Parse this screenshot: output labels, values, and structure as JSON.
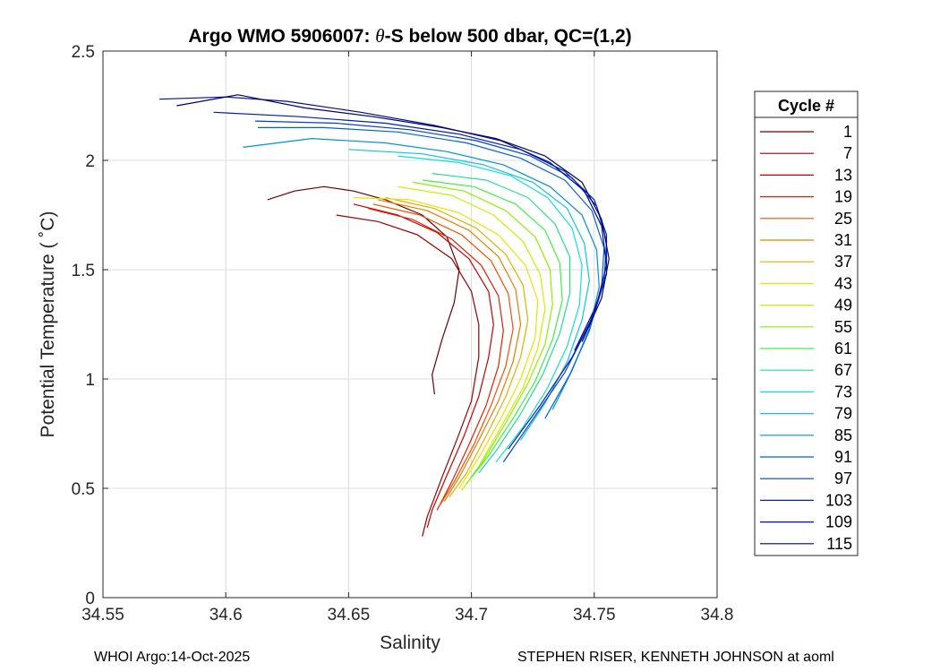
{
  "chart_data": {
    "type": "line",
    "title_prefix": "Argo WMO 5906007: ",
    "title_theta": "θ",
    "title_suffix": "-S below 500 dbar,  QC=(1,2)",
    "xlabel": "Salinity",
    "ylabel": "Potential Temperature ( ˚C)",
    "xlim": [
      34.55,
      34.8
    ],
    "ylim": [
      0,
      2.5
    ],
    "xticks": [
      34.55,
      34.6,
      34.65,
      34.7,
      34.75,
      34.8
    ],
    "xtick_labels": [
      "34.55",
      "34.6",
      "34.65",
      "34.7",
      "34.75",
      "34.8"
    ],
    "yticks": [
      0,
      0.5,
      1,
      1.5,
      2,
      2.5
    ],
    "ytick_labels": [
      "0",
      "0.5",
      "1",
      "1.5",
      "2",
      "2.5"
    ],
    "grid": true,
    "legend": {
      "title": "Cycle #",
      "placement": "outside-right",
      "entries": [
        {
          "label": "1",
          "color": "#6e0000"
        },
        {
          "label": "7",
          "color": "#9a0000"
        },
        {
          "label": "13",
          "color": "#c80000"
        },
        {
          "label": "19",
          "color": "#e61e00"
        },
        {
          "label": "25",
          "color": "#f05000"
        },
        {
          "label": "31",
          "color": "#e08000"
        },
        {
          "label": "37",
          "color": "#e0b000"
        },
        {
          "label": "43",
          "color": "#f0e000"
        },
        {
          "label": "49",
          "color": "#c8f000"
        },
        {
          "label": "55",
          "color": "#8ef000"
        },
        {
          "label": "61",
          "color": "#40f040"
        },
        {
          "label": "67",
          "color": "#20e090"
        },
        {
          "label": "73",
          "color": "#10e0d0"
        },
        {
          "label": "79",
          "color": "#10c0f0"
        },
        {
          "label": "85",
          "color": "#0090e0"
        },
        {
          "label": "91",
          "color": "#0060e0"
        },
        {
          "label": "97",
          "color": "#0040d0"
        },
        {
          "label": "103",
          "color": "#0020b0"
        },
        {
          "label": "109",
          "color": "#001090"
        },
        {
          "label": "115",
          "color": "#000070"
        }
      ]
    },
    "series": [
      {
        "name": "1",
        "points": [
          [
            34.617,
            1.82
          ],
          [
            34.628,
            1.86
          ],
          [
            34.64,
            1.88
          ],
          [
            34.652,
            1.86
          ],
          [
            34.665,
            1.82
          ],
          [
            34.68,
            1.75
          ],
          [
            34.69,
            1.65
          ],
          [
            34.695,
            1.5
          ],
          [
            34.693,
            1.35
          ],
          [
            34.688,
            1.18
          ],
          [
            34.684,
            1.02
          ],
          [
            34.685,
            0.93
          ]
        ]
      },
      {
        "name": "7",
        "points": [
          [
            34.645,
            1.75
          ],
          [
            34.662,
            1.72
          ],
          [
            34.678,
            1.66
          ],
          [
            34.692,
            1.55
          ],
          [
            34.7,
            1.4
          ],
          [
            34.703,
            1.25
          ],
          [
            34.703,
            1.1
          ],
          [
            34.7,
            0.9
          ],
          [
            34.694,
            0.72
          ],
          [
            34.688,
            0.55
          ],
          [
            34.682,
            0.37
          ],
          [
            34.68,
            0.28
          ]
        ]
      },
      {
        "name": "13",
        "points": [
          [
            34.652,
            1.8
          ],
          [
            34.67,
            1.75
          ],
          [
            34.686,
            1.67
          ],
          [
            34.699,
            1.55
          ],
          [
            34.707,
            1.4
          ],
          [
            34.709,
            1.25
          ],
          [
            34.707,
            1.1
          ],
          [
            34.703,
            0.92
          ],
          [
            34.697,
            0.74
          ],
          [
            34.69,
            0.56
          ],
          [
            34.684,
            0.4
          ],
          [
            34.682,
            0.32
          ]
        ]
      },
      {
        "name": "19",
        "points": [
          [
            34.658,
            1.78
          ],
          [
            34.676,
            1.73
          ],
          [
            34.692,
            1.64
          ],
          [
            34.704,
            1.52
          ],
          [
            34.711,
            1.38
          ],
          [
            34.713,
            1.22
          ],
          [
            34.711,
            1.06
          ],
          [
            34.706,
            0.88
          ],
          [
            34.699,
            0.7
          ],
          [
            34.692,
            0.53
          ],
          [
            34.686,
            0.4
          ]
        ]
      },
      {
        "name": "25",
        "points": [
          [
            34.66,
            1.8
          ],
          [
            34.679,
            1.75
          ],
          [
            34.696,
            1.66
          ],
          [
            34.708,
            1.54
          ],
          [
            34.715,
            1.39
          ],
          [
            34.717,
            1.23
          ],
          [
            34.714,
            1.06
          ],
          [
            34.708,
            0.88
          ],
          [
            34.701,
            0.7
          ],
          [
            34.693,
            0.53
          ],
          [
            34.687,
            0.42
          ]
        ]
      },
      {
        "name": "31",
        "points": [
          [
            34.662,
            1.82
          ],
          [
            34.682,
            1.77
          ],
          [
            34.699,
            1.68
          ],
          [
            34.711,
            1.56
          ],
          [
            34.718,
            1.41
          ],
          [
            34.72,
            1.25
          ],
          [
            34.717,
            1.08
          ],
          [
            34.711,
            0.9
          ],
          [
            34.703,
            0.72
          ],
          [
            34.695,
            0.55
          ],
          [
            34.689,
            0.44
          ]
        ]
      },
      {
        "name": "37",
        "points": [
          [
            34.665,
            1.83
          ],
          [
            34.685,
            1.78
          ],
          [
            34.702,
            1.69
          ],
          [
            34.714,
            1.57
          ],
          [
            34.721,
            1.43
          ],
          [
            34.723,
            1.27
          ],
          [
            34.72,
            1.1
          ],
          [
            34.714,
            0.92
          ],
          [
            34.706,
            0.74
          ],
          [
            34.698,
            0.57
          ],
          [
            34.691,
            0.46
          ]
        ]
      },
      {
        "name": "43",
        "points": [
          [
            34.652,
            1.83
          ],
          [
            34.675,
            1.82
          ],
          [
            34.695,
            1.76
          ],
          [
            34.711,
            1.66
          ],
          [
            34.722,
            1.52
          ],
          [
            34.727,
            1.36
          ],
          [
            34.726,
            1.19
          ],
          [
            34.72,
            1.0
          ],
          [
            34.712,
            0.82
          ],
          [
            34.703,
            0.64
          ],
          [
            34.695,
            0.5
          ]
        ]
      },
      {
        "name": "49",
        "points": [
          [
            34.67,
            1.88
          ],
          [
            34.692,
            1.84
          ],
          [
            34.709,
            1.75
          ],
          [
            34.721,
            1.63
          ],
          [
            34.728,
            1.48
          ],
          [
            34.73,
            1.32
          ],
          [
            34.727,
            1.14
          ],
          [
            34.721,
            0.96
          ],
          [
            34.712,
            0.78
          ],
          [
            34.703,
            0.6
          ],
          [
            34.696,
            0.49
          ]
        ]
      },
      {
        "name": "55",
        "points": [
          [
            34.676,
            1.9
          ],
          [
            34.697,
            1.86
          ],
          [
            34.714,
            1.77
          ],
          [
            34.726,
            1.65
          ],
          [
            34.732,
            1.5
          ],
          [
            34.733,
            1.34
          ],
          [
            34.73,
            1.16
          ],
          [
            34.723,
            0.98
          ],
          [
            34.714,
            0.8
          ],
          [
            34.705,
            0.63
          ],
          [
            34.698,
            0.52
          ]
        ]
      },
      {
        "name": "61",
        "points": [
          [
            34.68,
            1.91
          ],
          [
            34.701,
            1.88
          ],
          [
            34.718,
            1.8
          ],
          [
            34.73,
            1.68
          ],
          [
            34.736,
            1.53
          ],
          [
            34.737,
            1.36
          ],
          [
            34.733,
            1.18
          ],
          [
            34.726,
            0.99
          ],
          [
            34.717,
            0.82
          ],
          [
            34.707,
            0.65
          ],
          [
            34.7,
            0.55
          ]
        ]
      },
      {
        "name": "67",
        "points": [
          [
            34.684,
            1.94
          ],
          [
            34.706,
            1.91
          ],
          [
            34.723,
            1.83
          ],
          [
            34.734,
            1.71
          ],
          [
            34.74,
            1.56
          ],
          [
            34.74,
            1.39
          ],
          [
            34.736,
            1.21
          ],
          [
            34.729,
            1.02
          ],
          [
            34.72,
            0.84
          ],
          [
            34.71,
            0.67
          ],
          [
            34.703,
            0.57
          ]
        ]
      },
      {
        "name": "73",
        "points": [
          [
            34.67,
            2.02
          ],
          [
            34.695,
            1.99
          ],
          [
            34.716,
            1.93
          ],
          [
            34.731,
            1.83
          ],
          [
            34.741,
            1.69
          ],
          [
            34.745,
            1.52
          ],
          [
            34.744,
            1.34
          ],
          [
            34.739,
            1.15
          ],
          [
            34.731,
            0.96
          ],
          [
            34.721,
            0.78
          ],
          [
            34.71,
            0.62
          ]
        ]
      },
      {
        "name": "79",
        "points": [
          [
            34.65,
            2.05
          ],
          [
            34.68,
            2.03
          ],
          [
            34.705,
            1.98
          ],
          [
            34.725,
            1.9
          ],
          [
            34.739,
            1.78
          ],
          [
            34.746,
            1.62
          ],
          [
            34.748,
            1.45
          ],
          [
            34.745,
            1.27
          ],
          [
            34.739,
            1.08
          ],
          [
            34.73,
            0.89
          ],
          [
            34.72,
            0.72
          ]
        ]
      },
      {
        "name": "85",
        "points": [
          [
            34.607,
            2.06
          ],
          [
            34.635,
            2.1
          ],
          [
            34.665,
            2.08
          ],
          [
            34.69,
            2.04
          ],
          [
            34.713,
            1.98
          ],
          [
            34.732,
            1.88
          ],
          [
            34.745,
            1.75
          ],
          [
            34.751,
            1.59
          ],
          [
            34.752,
            1.42
          ],
          [
            34.748,
            1.23
          ],
          [
            34.741,
            1.04
          ],
          [
            34.733,
            0.86
          ]
        ]
      },
      {
        "name": "91",
        "points": [
          [
            34.613,
            2.15
          ],
          [
            34.64,
            2.15
          ],
          [
            34.67,
            2.13
          ],
          [
            34.698,
            2.08
          ],
          [
            34.72,
            2.01
          ],
          [
            34.738,
            1.91
          ],
          [
            34.749,
            1.77
          ],
          [
            34.754,
            1.6
          ],
          [
            34.753,
            1.42
          ],
          [
            34.748,
            1.22
          ],
          [
            34.74,
            1.02
          ],
          [
            34.73,
            0.82
          ]
        ]
      },
      {
        "name": "97",
        "points": [
          [
            34.612,
            2.18
          ],
          [
            34.645,
            2.17
          ],
          [
            34.675,
            2.14
          ],
          [
            34.702,
            2.09
          ],
          [
            34.724,
            2.02
          ],
          [
            34.741,
            1.92
          ],
          [
            34.751,
            1.79
          ],
          [
            34.755,
            1.63
          ],
          [
            34.754,
            1.45
          ],
          [
            34.748,
            1.25
          ],
          [
            34.738,
            1.03
          ],
          [
            34.724,
            0.8
          ],
          [
            34.713,
            0.62
          ]
        ]
      },
      {
        "name": "103",
        "points": [
          [
            34.595,
            2.22
          ],
          [
            34.63,
            2.2
          ],
          [
            34.665,
            2.17
          ],
          [
            34.695,
            2.12
          ],
          [
            34.72,
            2.05
          ],
          [
            34.738,
            1.95
          ],
          [
            34.75,
            1.82
          ],
          [
            34.755,
            1.66
          ],
          [
            34.755,
            1.48
          ],
          [
            34.75,
            1.3
          ],
          [
            34.741,
            1.1
          ],
          [
            34.728,
            0.88
          ],
          [
            34.715,
            0.68
          ]
        ]
      },
      {
        "name": "109",
        "points": [
          [
            34.573,
            2.28
          ],
          [
            34.6,
            2.29
          ],
          [
            34.625,
            2.27
          ],
          [
            34.655,
            2.22
          ],
          [
            34.685,
            2.16
          ],
          [
            34.712,
            2.09
          ],
          [
            34.732,
            1.99
          ],
          [
            34.746,
            1.86
          ],
          [
            34.753,
            1.7
          ],
          [
            34.755,
            1.52
          ],
          [
            34.751,
            1.34
          ],
          [
            34.742,
            1.13
          ]
        ]
      },
      {
        "name": "115",
        "points": [
          [
            34.58,
            2.25
          ],
          [
            34.605,
            2.3
          ],
          [
            34.632,
            2.24
          ],
          [
            34.66,
            2.2
          ],
          [
            34.688,
            2.15
          ],
          [
            34.71,
            2.1
          ],
          [
            34.73,
            2.02
          ],
          [
            34.745,
            1.9
          ],
          [
            34.753,
            1.73
          ],
          [
            34.756,
            1.55
          ],
          [
            34.753,
            1.37
          ],
          [
            34.745,
            1.17
          ]
        ]
      }
    ]
  },
  "footer": {
    "left": "WHOI Argo:14-Oct-2025",
    "right": "STEPHEN RISER, KENNETH JOHNSON at aoml"
  }
}
